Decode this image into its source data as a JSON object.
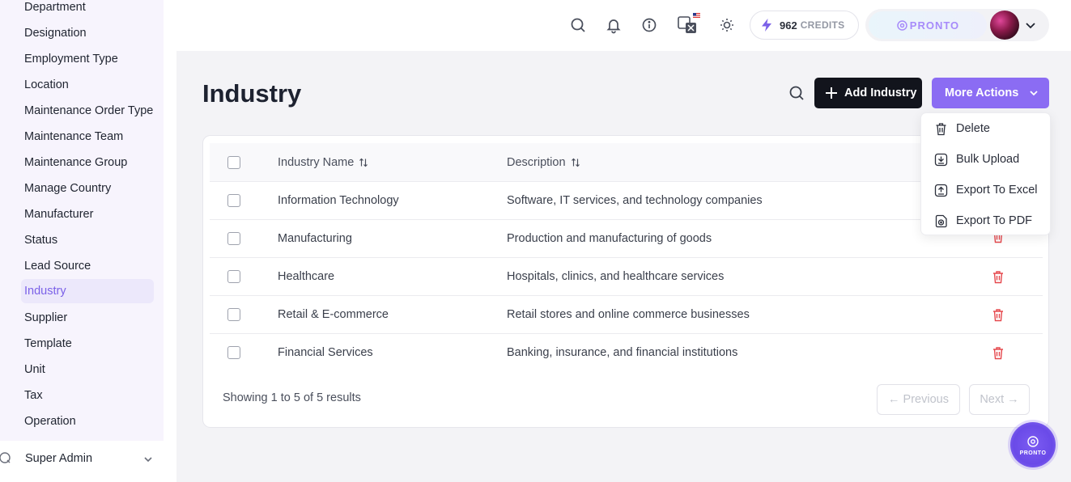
{
  "sidebar": {
    "items": [
      {
        "label": "Department"
      },
      {
        "label": "Designation"
      },
      {
        "label": "Employment Type"
      },
      {
        "label": "Location"
      },
      {
        "label": "Maintenance Order Type"
      },
      {
        "label": "Maintenance Team"
      },
      {
        "label": "Maintenance Group"
      },
      {
        "label": "Manage Country"
      },
      {
        "label": "Manufacturer"
      },
      {
        "label": "Status"
      },
      {
        "label": "Lead Source"
      },
      {
        "label": "Industry"
      },
      {
        "label": "Supplier"
      },
      {
        "label": "Template"
      },
      {
        "label": "Unit"
      },
      {
        "label": "Tax"
      },
      {
        "label": "Operation"
      }
    ],
    "active_index": 11,
    "super_admin_label": "Super Admin"
  },
  "header": {
    "credits_count": "962",
    "credits_label": "CREDITS",
    "logo_text": "PRONTO",
    "icons": [
      "search-icon",
      "bell-icon",
      "info-icon",
      "translate-icon",
      "sun-icon"
    ]
  },
  "page": {
    "title": "Industry",
    "add_button_label": "Add Industry",
    "more_actions_label": "More Actions"
  },
  "table": {
    "columns": [
      "Industry Name",
      "Description"
    ],
    "rows": [
      {
        "name": "Information Technology",
        "description": "Software, IT services, and technology companies"
      },
      {
        "name": "Manufacturing",
        "description": "Production and manufacturing of goods"
      },
      {
        "name": "Healthcare",
        "description": "Hospitals, clinics, and healthcare services"
      },
      {
        "name": "Retail & E-commerce",
        "description": "Retail stores and online commerce businesses"
      },
      {
        "name": "Financial Services",
        "description": "Banking, insurance, and financial institutions"
      }
    ],
    "footer_text": "Showing 1 to 5 of 5 results",
    "prev_label": "← Previous",
    "next_label": "Next →"
  },
  "dropdown": {
    "items": [
      {
        "label": "Delete",
        "icon": "trash-icon"
      },
      {
        "label": "Bulk Upload",
        "icon": "download-icon"
      },
      {
        "label": "Export To Excel",
        "icon": "upload-icon"
      },
      {
        "label": "Export To PDF",
        "icon": "file-export-icon"
      }
    ]
  },
  "fab": {
    "text": "PRONTO"
  },
  "colors": {
    "accent": "#8b6cf3",
    "danger": "#e5484d",
    "dark": "#12141c"
  }
}
